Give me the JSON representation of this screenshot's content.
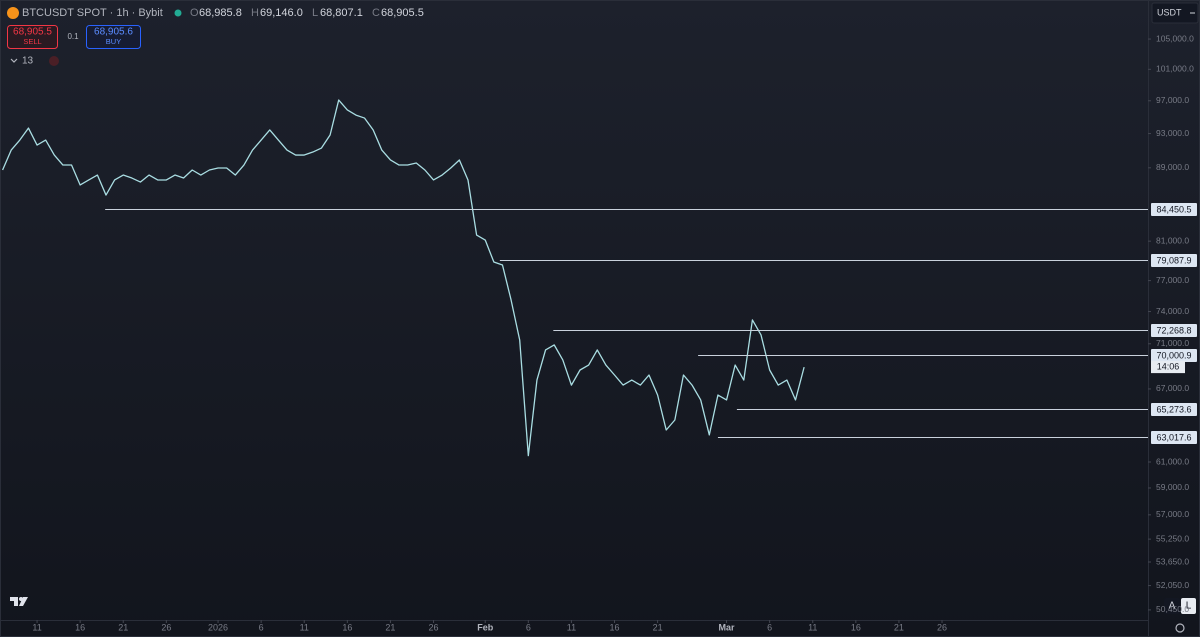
{
  "header": {
    "symbol": "BTCUSDT SPOT · 1h · Bybit",
    "ohlc": [
      {
        "label": "O",
        "value": "68,985.8"
      },
      {
        "label": "H",
        "value": "69,146.0"
      },
      {
        "label": "L",
        "value": "68,807.1"
      },
      {
        "label": "C",
        "value": "68,905.5"
      }
    ]
  },
  "trade": {
    "sell_price": "68,905.5",
    "sell_label": "SELL",
    "quantity": "0.1",
    "buy_price": "68,905.6",
    "buy_label": "BUY"
  },
  "indicators_count": "13",
  "currency": "USDT",
  "countdown": "14:06",
  "scale_buttons": [
    "A",
    "L"
  ],
  "chart_data": {
    "type": "line",
    "log_scale": true,
    "color": "#a9dde2",
    "xlim": [
      -25.3,
      107.9
    ],
    "ylim": [
      49800,
      110400
    ],
    "x": [
      -25,
      -24,
      -23,
      -22,
      -21,
      -20,
      -19,
      -18,
      -17,
      -16,
      -15,
      -14,
      -13,
      -12,
      -11,
      -10,
      -9,
      -8,
      -7,
      -6,
      -5,
      -4,
      -3,
      -2,
      -1,
      0,
      1,
      2,
      3,
      4,
      5,
      6,
      7,
      8,
      9,
      10,
      11,
      12,
      13,
      14,
      15,
      16,
      17,
      18,
      19,
      20,
      21,
      22,
      23,
      24,
      25,
      26,
      27,
      28,
      29,
      30,
      31,
      32,
      33,
      34,
      35,
      36,
      37,
      38,
      39,
      40,
      41,
      42,
      43,
      44,
      45,
      46,
      47,
      48,
      49,
      50,
      51,
      52,
      53,
      54,
      55,
      56,
      57,
      58,
      59,
      60,
      61,
      62,
      63,
      64,
      65,
      66,
      67,
      68
    ],
    "values": [
      88750,
      91050,
      92230,
      93660,
      91640,
      92230,
      90470,
      89320,
      89320,
      87060,
      87620,
      88180,
      85940,
      87620,
      88180,
      87840,
      87390,
      88180,
      87620,
      87620,
      88180,
      87840,
      88750,
      88180,
      88750,
      88980,
      88980,
      88180,
      89320,
      91050,
      92230,
      93430,
      92230,
      91050,
      90470,
      90470,
      90820,
      91290,
      92830,
      97090,
      95860,
      95230,
      94870,
      93430,
      91050,
      89900,
      89320,
      89320,
      89550,
      88750,
      87620,
      88180,
      88980,
      89900,
      87620,
      81640,
      81120,
      78860,
      78560,
      75110,
      71350,
      61500,
      67770,
      70440,
      70900,
      69540,
      67330,
      68650,
      69090,
      70440,
      69090,
      68210,
      67330,
      67770,
      67330,
      68210,
      66480,
      63560,
      64380,
      68210,
      67330,
      66060,
      63160,
      66480,
      66060,
      69090,
      67770,
      73210,
      71810,
      68650,
      67330,
      67770,
      66060,
      68905.5
    ],
    "levels": [
      {
        "value": 84450.5,
        "label": "84,450.5",
        "start": -13.1
      },
      {
        "value": 79087.9,
        "label": "79,087.9",
        "start": 32.7
      },
      {
        "value": 72268.8,
        "label": "72,268.8",
        "start": 38.9
      },
      {
        "value": 70000.9,
        "label": "70,000.9",
        "start": 55.7
      },
      {
        "value": 65273.6,
        "label": "65,273.6",
        "start": 60.2
      },
      {
        "value": 63017.6,
        "label": "63,017.6",
        "start": 58
      }
    ],
    "yticks": [
      {
        "value": 105000,
        "label": "105,000.0"
      },
      {
        "value": 101000,
        "label": "101,000.0"
      },
      {
        "value": 97000,
        "label": "97,000.0"
      },
      {
        "value": 93000,
        "label": "93,000.0"
      },
      {
        "value": 89000,
        "label": "89,000.0"
      },
      {
        "value": 81000,
        "label": "81,000.0"
      },
      {
        "value": 77000,
        "label": "77,000.0"
      },
      {
        "value": 74000,
        "label": "74,000.0"
      },
      {
        "value": 71000,
        "label": "71,000.0"
      },
      {
        "value": 67000,
        "label": "67,000.0"
      },
      {
        "value": 61000,
        "label": "61,000.0"
      },
      {
        "value": 59000,
        "label": "59,000.0"
      },
      {
        "value": 57000,
        "label": "57,000.0"
      },
      {
        "value": 55250,
        "label": "55,250.0"
      },
      {
        "value": 53650,
        "label": "53,650.0"
      },
      {
        "value": 52050,
        "label": "52,050.0"
      },
      {
        "value": 50450,
        "label": "50,450.0"
      }
    ],
    "xticks": [
      {
        "value": -21,
        "label": "11"
      },
      {
        "value": -16,
        "label": "16"
      },
      {
        "value": -11,
        "label": "21"
      },
      {
        "value": -6,
        "label": "26"
      },
      {
        "value": 0,
        "label": "2026"
      },
      {
        "value": 5,
        "label": "6"
      },
      {
        "value": 10,
        "label": "11"
      },
      {
        "value": 15,
        "label": "16"
      },
      {
        "value": 20,
        "label": "21"
      },
      {
        "value": 25,
        "label": "26"
      },
      {
        "value": 31,
        "label": "Feb"
      },
      {
        "value": 36,
        "label": "6"
      },
      {
        "value": 41,
        "label": "11"
      },
      {
        "value": 46,
        "label": "16"
      },
      {
        "value": 51,
        "label": "21"
      },
      {
        "value": 59,
        "label": "Mar"
      },
      {
        "value": 64,
        "label": "6"
      },
      {
        "value": 69,
        "label": "11"
      },
      {
        "value": 74,
        "label": "16"
      },
      {
        "value": 79,
        "label": "21"
      },
      {
        "value": 84,
        "label": "26"
      }
    ]
  }
}
